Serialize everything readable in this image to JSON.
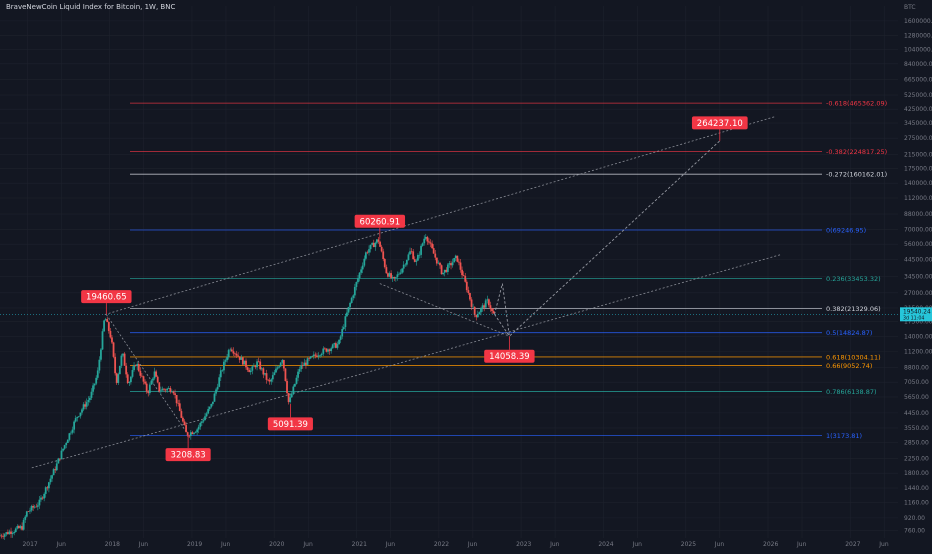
{
  "chart_title": "BraveNewCoin Liquid Index for Bitcoin, 1W, BNC",
  "chart_data": {
    "type": "candlestick",
    "title": "BraveNewCoin Liquid Index for Bitcoin, 1W, BNC",
    "y_unit": "BTC",
    "y_scale": "log",
    "ylim": [
      680,
      2000000
    ],
    "x_range": [
      "2016-09-01",
      "2027-08-01"
    ],
    "current_price": "19540.24",
    "current_price_sub": "3d 11:04",
    "y_ticks": [
      1600000,
      1280000,
      1040000,
      840000,
      665000,
      525000,
      425000,
      345000,
      275000,
      215000,
      175000,
      140000,
      112000,
      88000,
      70000,
      56000,
      44500,
      34500,
      27000,
      21500,
      17500,
      14000,
      11200,
      8800,
      7050,
      5650,
      4450,
      3550,
      2850,
      2250,
      1800,
      1440,
      1160,
      920,
      760
    ],
    "y_tick_labels": [
      "1600000.00",
      "1280000.00",
      "1040000.00",
      "840000.00",
      "665000.00",
      "525000.00",
      "425000.00",
      "345000.00",
      "275000.00",
      "215000.00",
      "175000.00",
      "140000.00",
      "112000.00",
      "88000.00",
      "70000.00",
      "56000.00",
      "44500.00",
      "34500.00",
      "27000.00",
      "21500.00",
      "17500.00",
      "14000.00",
      "11200.00",
      "8800.00",
      "7050.00",
      "5650.00",
      "4450.00",
      "3550.00",
      "2850.00",
      "2250.00",
      "1800.00",
      "1440.00",
      "1160.00",
      "920.00",
      "760.00"
    ],
    "x_ticks": [
      {
        "date": "2017-01-01",
        "label": "2017"
      },
      {
        "date": "2017-06-01",
        "label": "Jun"
      },
      {
        "date": "2018-01-01",
        "label": "2018"
      },
      {
        "date": "2018-06-01",
        "label": "Jun"
      },
      {
        "date": "2019-01-01",
        "label": "2019"
      },
      {
        "date": "2019-06-01",
        "label": "Jun"
      },
      {
        "date": "2020-01-01",
        "label": "2020"
      },
      {
        "date": "2020-06-01",
        "label": "Jun"
      },
      {
        "date": "2021-01-01",
        "label": "2021"
      },
      {
        "date": "2021-06-01",
        "label": "Jun"
      },
      {
        "date": "2022-01-01",
        "label": "2022"
      },
      {
        "date": "2022-06-01",
        "label": "Jun"
      },
      {
        "date": "2023-01-01",
        "label": "2023"
      },
      {
        "date": "2023-06-01",
        "label": "Jun"
      },
      {
        "date": "2024-01-01",
        "label": "2024"
      },
      {
        "date": "2024-06-01",
        "label": "Jun"
      },
      {
        "date": "2025-01-01",
        "label": "2025"
      },
      {
        "date": "2025-06-01",
        "label": "Jun"
      },
      {
        "date": "2026-01-01",
        "label": "2026"
      },
      {
        "date": "2026-06-01",
        "label": "Jun"
      },
      {
        "date": "2027-01-01",
        "label": "2027"
      },
      {
        "date": "2027-06-01",
        "label": "Jun"
      }
    ],
    "price_path": [
      {
        "date": "2016-09-01",
        "price": 700
      },
      {
        "date": "2016-12-15",
        "price": 800
      },
      {
        "date": "2017-01-05",
        "price": 1000
      },
      {
        "date": "2017-03-01",
        "price": 1150
      },
      {
        "date": "2017-05-15",
        "price": 2000
      },
      {
        "date": "2017-06-15",
        "price": 2600
      },
      {
        "date": "2017-08-15",
        "price": 4200
      },
      {
        "date": "2017-10-15",
        "price": 5700
      },
      {
        "date": "2017-11-15",
        "price": 8000
      },
      {
        "date": "2017-12-17",
        "price": 19000
      },
      {
        "date": "2018-01-15",
        "price": 13500
      },
      {
        "date": "2018-02-06",
        "price": 7000
      },
      {
        "date": "2018-03-05",
        "price": 11000
      },
      {
        "date": "2018-04-01",
        "price": 6900
      },
      {
        "date": "2018-05-05",
        "price": 9500
      },
      {
        "date": "2018-06-25",
        "price": 6000
      },
      {
        "date": "2018-07-25",
        "price": 8200
      },
      {
        "date": "2018-08-15",
        "price": 6300
      },
      {
        "date": "2018-10-15",
        "price": 6400
      },
      {
        "date": "2018-11-20",
        "price": 4300
      },
      {
        "date": "2018-12-15",
        "price": 3200
      },
      {
        "date": "2019-02-01",
        "price": 3500
      },
      {
        "date": "2019-04-05",
        "price": 5000
      },
      {
        "date": "2019-05-15",
        "price": 8000
      },
      {
        "date": "2019-06-26",
        "price": 12000
      },
      {
        "date": "2019-08-01",
        "price": 10500
      },
      {
        "date": "2019-09-25",
        "price": 8300
      },
      {
        "date": "2019-10-26",
        "price": 9500
      },
      {
        "date": "2019-12-17",
        "price": 6900
      },
      {
        "date": "2020-02-14",
        "price": 10200
      },
      {
        "date": "2020-03-13",
        "price": 5100
      },
      {
        "date": "2020-04-30",
        "price": 8700
      },
      {
        "date": "2020-06-01",
        "price": 9600
      },
      {
        "date": "2020-07-27",
        "price": 11000
      },
      {
        "date": "2020-10-20",
        "price": 12500
      },
      {
        "date": "2020-11-20",
        "price": 18500
      },
      {
        "date": "2020-12-28",
        "price": 28000
      },
      {
        "date": "2021-02-20",
        "price": 50000
      },
      {
        "date": "2021-04-14",
        "price": 60000
      },
      {
        "date": "2021-05-20",
        "price": 37000
      },
      {
        "date": "2021-06-22",
        "price": 32000
      },
      {
        "date": "2021-08-01",
        "price": 40000
      },
      {
        "date": "2021-09-06",
        "price": 51000
      },
      {
        "date": "2021-09-28",
        "price": 42000
      },
      {
        "date": "2021-11-10",
        "price": 65000
      },
      {
        "date": "2021-12-20",
        "price": 47000
      },
      {
        "date": "2022-01-24",
        "price": 36000
      },
      {
        "date": "2022-03-28",
        "price": 46000
      },
      {
        "date": "2022-05-12",
        "price": 29000
      },
      {
        "date": "2022-06-18",
        "price": 19000
      },
      {
        "date": "2022-08-14",
        "price": 24000
      },
      {
        "date": "2022-09-05",
        "price": 19540
      }
    ],
    "projection_path": [
      {
        "date": "2022-09-05",
        "price": 19540
      },
      {
        "date": "2022-10-10",
        "price": 31000
      },
      {
        "date": "2022-11-10",
        "price": 14058
      },
      {
        "date": "2025-06-01",
        "price": 264237
      }
    ],
    "projection_path_2": [
      {
        "date": "2022-09-05",
        "price": 19540
      },
      {
        "date": "2022-11-10",
        "price": 14058
      }
    ],
    "trend_lines": [
      {
        "from": {
          "date": "2017-12-10",
          "price": 19460
        },
        "to": {
          "date": "2026-02-01",
          "price": 380000
        },
        "style": "dotted"
      },
      {
        "from": {
          "date": "2017-01-20",
          "price": 1950
        },
        "to": {
          "date": "2026-03-01",
          "price": 48000
        },
        "style": "dotted"
      },
      {
        "from": {
          "date": "2017-12-17",
          "price": 19460
        },
        "to": {
          "date": "2018-12-15",
          "price": 3208
        },
        "style": "dotted"
      },
      {
        "from": {
          "date": "2021-04-14",
          "price": 31000
        },
        "to": {
          "date": "2022-11-10",
          "price": 14058
        },
        "style": "dotted"
      }
    ],
    "fib_levels": [
      {
        "label": "-0.618(465362.09)",
        "price": 465362.09,
        "color": "#f23645"
      },
      {
        "label": "-0.382(224817.25)",
        "price": 224817.25,
        "color": "#f23645"
      },
      {
        "label": "-0.272(160162.01)",
        "price": 160162.01,
        "color": "#d1d4dc"
      },
      {
        "label": "0(69246.95)",
        "price": 69246.95,
        "color": "#2962ff"
      },
      {
        "label": "0.236(33453.32)",
        "price": 33453.32,
        "color": "#26a69a"
      },
      {
        "label": "0.382(21329.06)",
        "price": 21329.06,
        "color": "#d1d4dc"
      },
      {
        "label": "0.5(14824.87)",
        "price": 14824.87,
        "color": "#2962ff"
      },
      {
        "label": "0.618(10304.11)",
        "price": 10304.11,
        "color": "#ff9800"
      },
      {
        "label": "0.66(9052.74)",
        "price": 9052.74,
        "color": "#ff9800"
      },
      {
        "label": "0.786(6138.87)",
        "price": 6138.87,
        "color": "#26a69a"
      },
      {
        "label": "1(3173.81)",
        "price": 3173.81,
        "color": "#2962ff"
      }
    ],
    "callouts": [
      {
        "label": "19460.65",
        "date": "2017-12-17",
        "price": 19460.65,
        "side": "above"
      },
      {
        "label": "3208.83",
        "date": "2018-12-15",
        "price": 3208.83,
        "side": "below"
      },
      {
        "label": "5091.39",
        "date": "2020-03-13",
        "price": 5091.39,
        "side": "below"
      },
      {
        "label": "60260.91",
        "date": "2021-04-14",
        "price": 60260.91,
        "side": "above"
      },
      {
        "label": "14058.39",
        "date": "2022-11-10",
        "price": 14058.39,
        "side": "below"
      },
      {
        "label": "264237.10",
        "date": "2025-06-01",
        "price": 264237.1,
        "side": "above"
      }
    ],
    "colors": {
      "background": "#131722",
      "up": "#26a69a",
      "down": "#ef5350",
      "callout": "#f23645",
      "axis_text": "#787b86",
      "price_tag": "#26c6da",
      "grid": "#1e222d",
      "dotted": "#9598a1"
    }
  }
}
